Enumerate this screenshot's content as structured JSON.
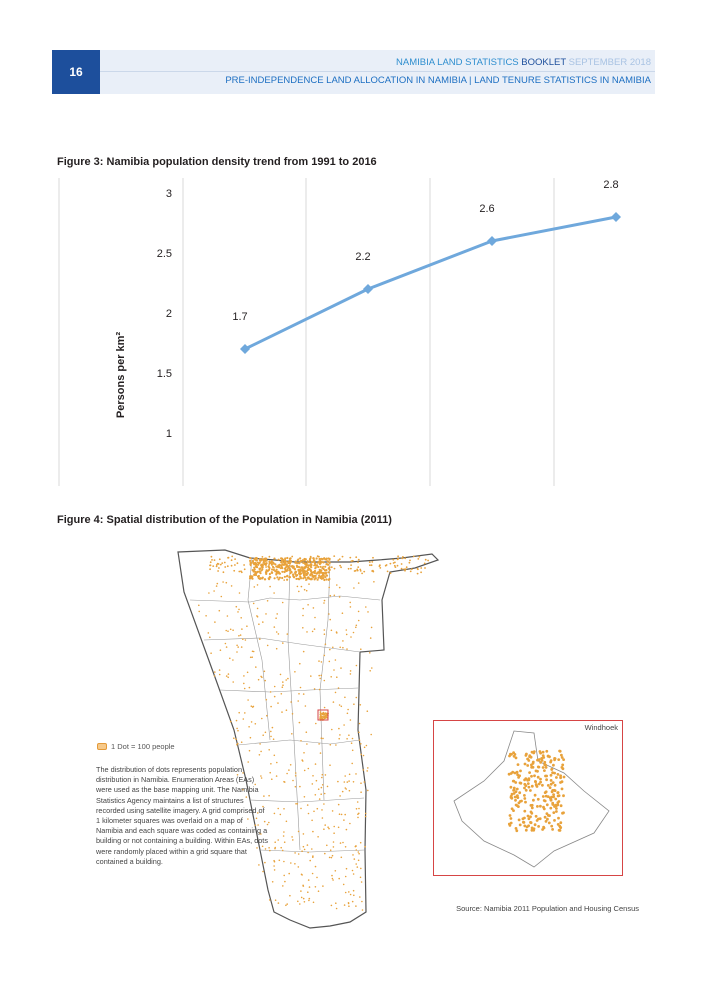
{
  "header": {
    "page_number": "16",
    "booklet_part1": "NAMIBIA LAND STATISTICS ",
    "booklet_part2": "BOOKLET",
    "booklet_part3": " SEPTEMBER 2018",
    "subtitle": "PRE-INDEPENDENCE LAND ALLOCATION IN NAMIBIA | LAND TENURE STATISTICS IN NAMIBIA"
  },
  "figure3": {
    "title": "Figure 3: Namibia population density trend from 1991 to 2016"
  },
  "figure4": {
    "title": "Figure 4: Spatial distribution of the Population in Namibia (2011)",
    "legend": "1 Dot = 100 people",
    "note": "The distribution of dots represents population distribution in Namibia. Enumeration Areas (EAs) were used as the base mapping unit. The Namibia Statistics Agency maintains a list of structures recorded using satellite imagery. A grid comprised of 1 kilometer squares was overlaid on a map of Namibia and each square was coded as containing a building or not containing a building. Within EAs, dots were randomly placed within a grid square that contained a building.",
    "inset_label": "Windhoek",
    "source": "Source: Namibia 2011 Population and Housing Census",
    "colors": {
      "dots": "#e8a23b",
      "inset_border": "#d64545"
    }
  },
  "chart_data": {
    "type": "line",
    "title": "Figure 3: Namibia population density trend from 1991 to 2016",
    "xlabel": "",
    "ylabel": "Persons per km²",
    "ylim": [
      1,
      3
    ],
    "yticks": [
      "1",
      "1.5",
      "2",
      "2.5",
      "3"
    ],
    "grid": "vertical",
    "series": [
      {
        "values": [
          1.7,
          2.2,
          2.6,
          2.8
        ],
        "labels": [
          "1.7",
          "2.2",
          "2.6",
          "2.8"
        ],
        "color": "#6fa8dc"
      }
    ]
  }
}
